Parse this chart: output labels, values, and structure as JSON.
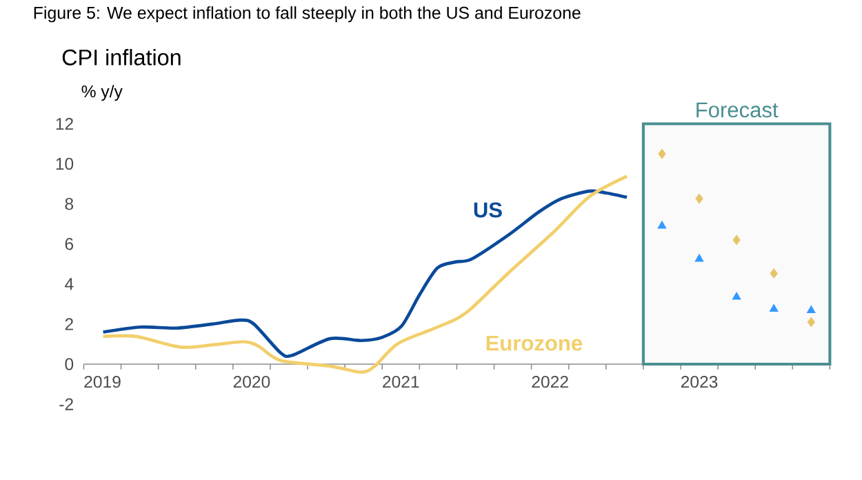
{
  "chart_data": {
    "type": "line",
    "title": "Figure 5: We expect inflation to fall steeply in both the US and Eurozone",
    "subtitle": "CPI inflation",
    "ylabel": "% y/y",
    "xlim": [
      2019,
      2024
    ],
    "ylim": [
      -2,
      12
    ],
    "yticks": [
      -2,
      0,
      2,
      4,
      6,
      8,
      10,
      12
    ],
    "xticks": [
      {
        "value": 2019,
        "label": null
      },
      {
        "value": 2019.25,
        "label": null
      },
      {
        "value": 2019.5,
        "label": null
      },
      {
        "value": 2019.75,
        "label": null
      },
      {
        "value": 2020,
        "label": null
      },
      {
        "value": 2020.25,
        "label": null
      },
      {
        "value": 2020.5,
        "label": null
      },
      {
        "value": 2020.75,
        "label": null
      },
      {
        "value": 2021,
        "label": null
      },
      {
        "value": 2021.25,
        "label": null
      },
      {
        "value": 2021.5,
        "label": null
      },
      {
        "value": 2021.75,
        "label": null
      },
      {
        "value": 2022,
        "label": null
      },
      {
        "value": 2022.25,
        "label": null
      },
      {
        "value": 2022.5,
        "label": null
      },
      {
        "value": 2022.75,
        "label": null
      },
      {
        "value": 2023,
        "label": null
      },
      {
        "value": 2023.25,
        "label": null
      },
      {
        "value": 2023.5,
        "label": null
      },
      {
        "value": 2023.75,
        "label": null
      },
      {
        "value": 2024,
        "label": null
      },
      {
        "value": 2019.125,
        "label": "2019"
      },
      {
        "value": 2020.125,
        "label": "2020"
      },
      {
        "value": 2021.125,
        "label": "2021"
      },
      {
        "value": 2022.125,
        "label": "2022"
      },
      {
        "value": 2023.125,
        "label": "2023"
      }
    ],
    "grid": false,
    "bands": [
      {
        "axis": "x",
        "from": 2022.75,
        "to": 2024,
        "label": "Forecast",
        "color": "#4a8f91"
      }
    ],
    "series": [
      {
        "name": "US",
        "color": "#0a4a9a",
        "x": [
          2019.13,
          2019.38,
          2019.62,
          2019.86,
          2020.05,
          2020.14,
          2020.32,
          2020.4,
          2020.65,
          2020.86,
          2021.0,
          2021.13,
          2021.25,
          2021.37,
          2021.49,
          2021.6,
          2021.85,
          2022.05,
          2022.2,
          2022.39,
          2022.5,
          2022.64
        ],
        "values": [
          1.6,
          1.85,
          1.8,
          2.0,
          2.2,
          2.0,
          0.56,
          0.45,
          1.27,
          1.18,
          1.34,
          1.9,
          3.46,
          4.8,
          5.1,
          5.25,
          6.47,
          7.6,
          8.26,
          8.64,
          8.55,
          8.33
        ]
      },
      {
        "name": "Eurozone",
        "color": "#f2cf6b",
        "x": [
          2019.13,
          2019.35,
          2019.65,
          2019.86,
          2020.07,
          2020.17,
          2020.32,
          2020.65,
          2020.86,
          2020.95,
          2021.1,
          2021.31,
          2021.49,
          2021.6,
          2021.85,
          2022.15,
          2022.39,
          2022.64
        ],
        "values": [
          1.38,
          1.38,
          0.85,
          0.96,
          1.12,
          0.9,
          0.18,
          -0.1,
          -0.4,
          -0.1,
          1.0,
          1.67,
          2.23,
          2.8,
          4.58,
          6.6,
          8.37,
          9.38
        ]
      },
      {
        "type": "scatter",
        "marker": "triangle",
        "color": "#3399ff",
        "x": [
          2022.875,
          2023.125,
          2023.375,
          2023.625,
          2023.875
        ],
        "values": [
          6.9,
          5.25,
          3.35,
          2.75,
          2.68
        ]
      },
      {
        "type": "scatter",
        "marker": "diamond",
        "color": "#e8c468",
        "x": [
          2022.875,
          2023.125,
          2023.375,
          2023.625,
          2023.875
        ],
        "values": [
          10.5,
          8.26,
          6.2,
          4.53,
          2.1
        ]
      }
    ]
  }
}
